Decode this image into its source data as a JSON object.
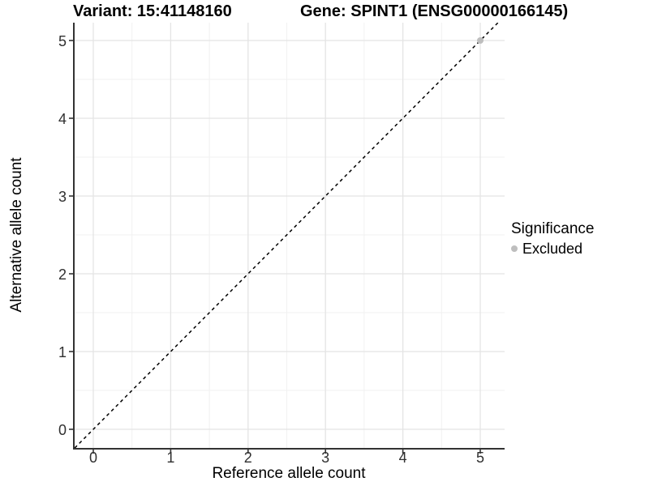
{
  "titles": {
    "variant": "Variant: 15:41148160",
    "gene": "Gene: SPINT1 (ENSG00000166145)"
  },
  "chart_data": {
    "type": "scatter",
    "title_left": "Variant: 15:41148160",
    "title_right": "Gene: SPINT1 (ENSG00000166145)",
    "xlabel": "Reference allele count",
    "ylabel": "Alternative allele count",
    "xticks": [
      0,
      1,
      2,
      3,
      4,
      5
    ],
    "yticks": [
      0,
      1,
      2,
      3,
      4,
      5
    ],
    "xlim": [
      -0.26,
      5.31
    ],
    "ylim": [
      -0.24,
      5.23
    ],
    "grid": {
      "major": true,
      "minor": true
    },
    "identity_line": {
      "slope": 1,
      "intercept": 0,
      "style": "dashed",
      "color": "#000000"
    },
    "series": [
      {
        "name": "Excluded",
        "color": "#BEBEBE",
        "points": [
          {
            "x": 5,
            "y": 5
          }
        ]
      }
    ],
    "legend": {
      "title": "Significance",
      "position": "right",
      "items": [
        {
          "label": "Excluded",
          "color": "#BEBEBE"
        }
      ]
    }
  },
  "colors": {
    "background": "#FFFFFF",
    "axis_line": "#333333",
    "grid_major": "#E4E4E4",
    "grid_minor": "#F1F1F1",
    "tick_text": "#303030",
    "text": "#000000",
    "excluded": "#BEBEBE"
  }
}
